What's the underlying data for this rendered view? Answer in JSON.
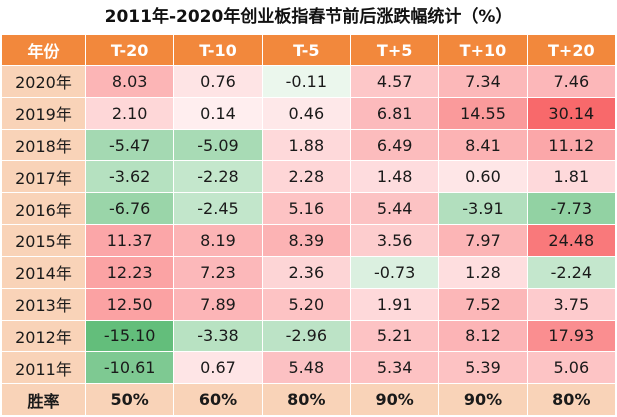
{
  "title": "2011年-2020年创业板指春节前后涨跌幅统计（%）",
  "chart_data": {
    "type": "table",
    "columns": [
      "年份",
      "T-20",
      "T-10",
      "T-5",
      "T+5",
      "T+10",
      "T+20"
    ],
    "rows": [
      {
        "year": "2020年",
        "values": [
          8.03,
          0.76,
          -0.11,
          4.57,
          7.34,
          7.46
        ]
      },
      {
        "year": "2019年",
        "values": [
          2.1,
          0.14,
          0.46,
          6.81,
          14.55,
          30.14
        ]
      },
      {
        "year": "2018年",
        "values": [
          -5.47,
          -5.09,
          1.88,
          6.49,
          8.41,
          11.12
        ]
      },
      {
        "year": "2017年",
        "values": [
          -3.62,
          -2.28,
          2.28,
          1.48,
          0.6,
          1.81
        ]
      },
      {
        "year": "2016年",
        "values": [
          -6.76,
          -2.45,
          5.16,
          5.44,
          -3.91,
          -7.73
        ]
      },
      {
        "year": "2015年",
        "values": [
          11.37,
          8.19,
          8.39,
          3.56,
          7.97,
          24.48
        ]
      },
      {
        "year": "2014年",
        "values": [
          12.23,
          7.23,
          2.36,
          -0.73,
          1.28,
          -2.24
        ]
      },
      {
        "year": "2013年",
        "values": [
          12.5,
          7.89,
          5.2,
          1.91,
          7.52,
          3.75
        ]
      },
      {
        "year": "2012年",
        "values": [
          -15.1,
          -3.38,
          -2.96,
          5.21,
          8.12,
          17.93
        ]
      },
      {
        "year": "2011年",
        "values": [
          -10.61,
          0.67,
          5.48,
          5.34,
          5.39,
          5.06
        ]
      }
    ],
    "summary_row": {
      "label": "胜率",
      "values": [
        "50%",
        "60%",
        "80%",
        "90%",
        "90%",
        "80%"
      ]
    },
    "colors": {
      "header_bg": "#f2883c",
      "year_bg": "#f9d3b8",
      "positive_max": "#f8696b",
      "negative_max": "#63be7b",
      "neutral": "#ffffff"
    }
  }
}
